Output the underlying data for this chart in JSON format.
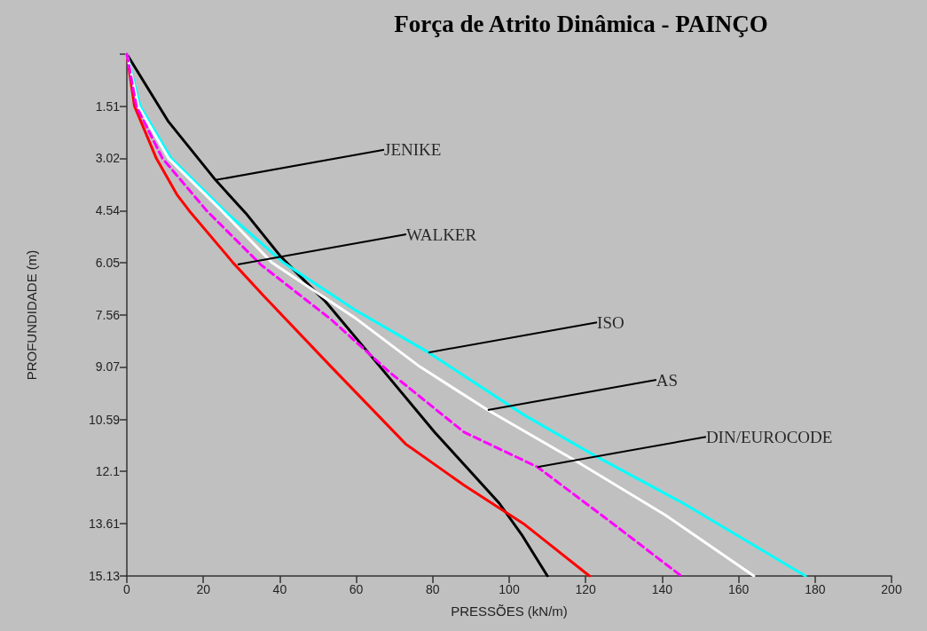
{
  "chart_data": {
    "type": "line",
    "title": "Força de Atrito Dinâmica - PAINÇO",
    "xlabel": "PRESSÕES (kN/m)",
    "ylabel": "PROFUNDIDADE (m)",
    "xlim": [
      0,
      200
    ],
    "xticks": [
      0,
      20,
      40,
      60,
      80,
      100,
      120,
      140,
      160,
      180,
      200
    ],
    "ylim": [
      15.13,
      0
    ],
    "yticks": [
      {
        "value": 0,
        "label": null
      },
      1.51,
      3.02,
      4.54,
      6.05,
      7.56,
      9.07,
      10.59,
      12.1,
      13.61,
      15.13
    ],
    "grid": false,
    "marker": "none",
    "series": [
      {
        "color": "#000000",
        "line_style": "solid",
        "x": [
          0,
          10.9,
          23.2,
          31.1,
          40.4,
          47.3,
          52,
          65,
          80.5,
          97.4,
          103.5,
          110
        ],
        "values": [
          0,
          1.96,
          3.65,
          4.61,
          5.89,
          6.66,
          7.18,
          8.9,
          10.96,
          13.02,
          13.97,
          15.13
        ]
      },
      {
        "color": "#ff0000",
        "line_style": "solid",
        "x": [
          0,
          2,
          7.7,
          13.2,
          16.3,
          27.8,
          35.7,
          53.4,
          72.9,
          88.2,
          103.7,
          121
        ],
        "values": [
          0,
          1.51,
          3.02,
          4.09,
          4.54,
          6.05,
          7.0,
          9.06,
          11.3,
          12.5,
          13.61,
          15.13
        ]
      },
      {
        "color": "#00ffff",
        "line_style": "solid",
        "x": [
          0,
          3.5,
          11.6,
          25.5,
          41,
          59.6,
          78.9,
          103.7,
          122.7,
          145.5,
          177.5
        ],
        "values": [
          0,
          1.51,
          3.02,
          4.54,
          6.05,
          7.41,
          8.65,
          10.45,
          11.66,
          13.02,
          15.13
        ]
      },
      {
        "color": "#ffffff",
        "line_style": "solid",
        "x": [
          0,
          3,
          10.9,
          24.8,
          38,
          59.6,
          76.6,
          94.4,
          116.9,
          140.8,
          164
        ],
        "values": [
          0,
          1.51,
          3.02,
          4.54,
          6.05,
          7.64,
          9.06,
          10.32,
          11.76,
          13.36,
          15.13
        ]
      },
      {
        "color": "#ff00ff",
        "line_style": "dashed",
        "x": [
          0,
          2.5,
          9.3,
          20.9,
          35,
          53.4,
          68.9,
          88.2,
          107.4,
          126.5,
          145
        ],
        "values": [
          0,
          1.51,
          3.02,
          4.54,
          6.1,
          7.69,
          9.24,
          10.96,
          11.97,
          13.56,
          15.13
        ]
      }
    ],
    "annotations": [
      {
        "text": "JENIKE",
        "x": 23.2,
        "y": 3.65
      },
      {
        "text": "WALKER",
        "x": 29,
        "y": 6.1
      },
      {
        "text": "ISO",
        "x": 78.9,
        "y": 8.65
      },
      {
        "text": "AS",
        "x": 94.4,
        "y": 10.32
      },
      {
        "text": "DIN/EUROCODE",
        "x": 107.4,
        "y": 11.97
      }
    ]
  }
}
